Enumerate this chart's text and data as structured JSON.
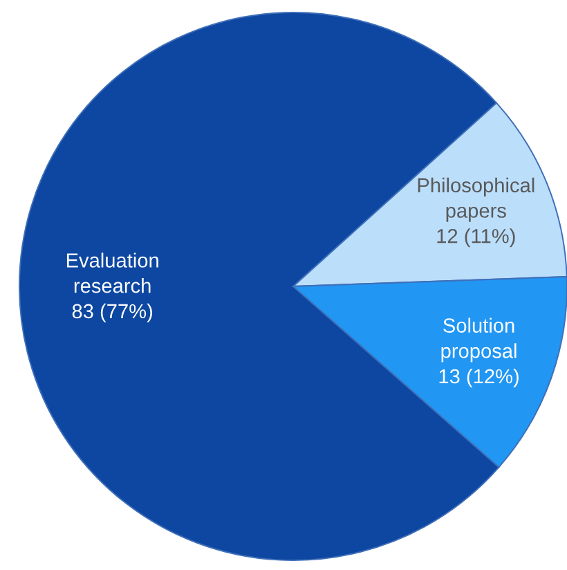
{
  "chart_data": {
    "type": "pie",
    "categories": [
      "Evaluation research",
      "Philosophical papers",
      "Solution proposal"
    ],
    "values": [
      83,
      12,
      13
    ],
    "colors": [
      "#0d47a1",
      "#bbdefb",
      "#2196f3"
    ],
    "value_labels": [
      "83 (77%)",
      "12 (11%)",
      "13 (12%)"
    ]
  }
}
